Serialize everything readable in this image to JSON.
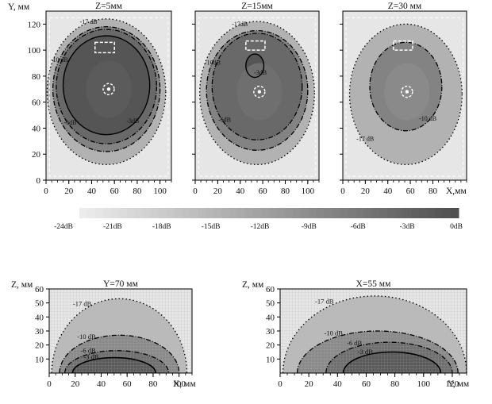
{
  "chart_data": [
    {
      "type": "heatmap",
      "view": "xy",
      "title": "Z=5мм",
      "ylabel": "Y, мм",
      "xlim": [
        0,
        110
      ],
      "ylim": [
        0,
        130
      ],
      "xticks": [
        0,
        20,
        40,
        60,
        80,
        100
      ],
      "yticks": [
        0,
        20,
        40,
        60,
        80,
        100,
        120
      ],
      "center_db": -2,
      "hotspot": {
        "x": 55,
        "y": 70
      },
      "dashed_box": {
        "x": [
          43,
          60
        ],
        "y": [
          98,
          106
        ]
      },
      "contours": [
        {
          "label": "-3dB",
          "level": -3,
          "style": "solid",
          "rx": 38,
          "ry": 38,
          "cx": 53,
          "cy": 73
        },
        {
          "label": "-6dB",
          "level": -6,
          "style": "dashdot",
          "rx": 44,
          "ry": 44,
          "cx": 53,
          "cy": 72
        },
        {
          "label": "-10 dB",
          "level": -10,
          "style": "dashdot",
          "rx": 47,
          "ry": 48,
          "cx": 53,
          "cy": 70
        },
        {
          "label": "-17 dB",
          "level": -17,
          "style": "dotted",
          "rx": 52,
          "ry": 56,
          "cx": 53,
          "cy": 68
        }
      ]
    },
    {
      "type": "heatmap",
      "view": "xy",
      "title": "Z=15мм",
      "xlim": [
        0,
        110
      ],
      "ylim": [
        0,
        130
      ],
      "xticks": [
        0,
        20,
        40,
        60,
        80,
        100
      ],
      "yticks": [
        0,
        20,
        40,
        60,
        80,
        100,
        120
      ],
      "center_db": -5,
      "hotspot": {
        "x": 57,
        "y": 68
      },
      "dashed_box": {
        "x": [
          45,
          62
        ],
        "y": [
          100,
          107
        ]
      },
      "contours": [
        {
          "label": "-3dB",
          "level": -3,
          "style": "solid",
          "rx": 8,
          "ry": 9,
          "cx": 53,
          "cy": 88
        },
        {
          "label": "-6dB",
          "level": -6,
          "style": "dashdot",
          "rx": 40,
          "ry": 41,
          "cx": 55,
          "cy": 72
        },
        {
          "label": "-10dB",
          "level": -10,
          "style": "dashdot",
          "rx": 45,
          "ry": 46,
          "cx": 55,
          "cy": 69
        },
        {
          "label": "-17dB",
          "level": -17,
          "style": "dotted",
          "rx": 51,
          "ry": 55,
          "cx": 55,
          "cy": 67
        }
      ]
    },
    {
      "type": "heatmap",
      "view": "xy",
      "title": "Z=30 мм",
      "xlabel": "X,мм",
      "xlim": [
        0,
        110
      ],
      "ylim": [
        0,
        130
      ],
      "xticks": [
        0,
        20,
        40,
        60,
        80
      ],
      "yticks": [
        0,
        20,
        40,
        60,
        80,
        100,
        120
      ],
      "center_db": -9,
      "hotspot": {
        "x": 57,
        "y": 68
      },
      "dashed_box": {
        "x": [
          45,
          62
        ],
        "y": [
          100,
          107
        ]
      },
      "contours": [
        {
          "label": "-10 dB",
          "level": -10,
          "style": "dashdot",
          "rx": 32,
          "ry": 34,
          "cx": 56,
          "cy": 72
        },
        {
          "label": "-17 dB",
          "level": -17,
          "style": "dotted",
          "rx": 50,
          "ry": 54,
          "cx": 56,
          "cy": 66
        }
      ]
    },
    {
      "type": "heatmap",
      "view": "xz",
      "title": "Y=70 мм",
      "ylabel": "Z, мм",
      "xlabel": "X, мм",
      "xlim": [
        0,
        110
      ],
      "ylim": [
        0,
        60
      ],
      "xticks": [
        0,
        20,
        40,
        60,
        80,
        100
      ],
      "yticks": [
        10,
        20,
        30,
        40,
        50,
        60
      ],
      "contours": [
        {
          "label": "-17 dB",
          "level": -17,
          "style": "dotted",
          "peak": 53,
          "half": 52,
          "cx": 54
        },
        {
          "label": "-10 dB",
          "level": -10,
          "style": "dashdot",
          "peak": 27,
          "half": 46,
          "cx": 54
        },
        {
          "label": "-6 dB",
          "level": -6,
          "style": "dashdot",
          "peak": 16,
          "half": 40,
          "cx": 52
        },
        {
          "label": "-3 dB",
          "level": -3,
          "style": "solid",
          "peak": 11,
          "half": 32,
          "cx": 50
        }
      ]
    },
    {
      "type": "heatmap",
      "view": "yz",
      "title": "X=55 мм",
      "ylabel": "Z, мм",
      "xlabel": "Y, мм",
      "xlim": [
        0,
        130
      ],
      "ylim": [
        0,
        60
      ],
      "xticks": [
        0,
        20,
        40,
        60,
        80,
        100,
        120
      ],
      "yticks": [
        10,
        20,
        30,
        40,
        50,
        60
      ],
      "contours": [
        {
          "label": "-17 dB",
          "level": -17,
          "style": "dotted",
          "peak": 55,
          "half": 64,
          "cx": 66
        },
        {
          "label": "-10 dB",
          "level": -10,
          "style": "dashdot",
          "peak": 30,
          "half": 56,
          "cx": 68
        },
        {
          "label": "-6 dB",
          "level": -6,
          "style": "dashdot",
          "peak": 22,
          "half": 44,
          "cx": 76
        },
        {
          "label": "-3 dB",
          "level": -3,
          "style": "solid",
          "peak": 15,
          "half": 34,
          "cx": 78
        }
      ]
    }
  ],
  "colorbar": {
    "labels": [
      "-24dB",
      "-21dB",
      "-18dB",
      "-15dB",
      "-12dB",
      "-9dB",
      "-6dB",
      "-3dB",
      "0dB"
    ],
    "range": [
      -24,
      0
    ]
  }
}
